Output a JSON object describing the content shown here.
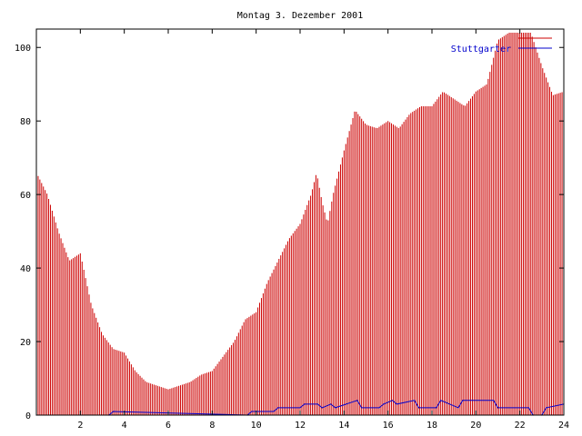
{
  "chart_data": {
    "type": "bar",
    "title": "Montag 3. Dezember 2001",
    "xlabel": "",
    "ylabel": "",
    "xlim": [
      0,
      24
    ],
    "ylim": [
      0,
      105
    ],
    "x_ticks": [
      "2",
      "4",
      "6",
      "8",
      "10",
      "12",
      "14",
      "16",
      "18",
      "20",
      "22",
      "24"
    ],
    "x_tick_values": [
      2,
      4,
      6,
      8,
      10,
      12,
      14,
      16,
      18,
      20,
      22,
      24
    ],
    "y_ticks": [
      "0",
      "20",
      "40",
      "60",
      "80",
      "100"
    ],
    "y_tick_values": [
      0,
      20,
      40,
      60,
      80,
      100
    ],
    "grid": false,
    "legend_position": "top-right",
    "series": [
      {
        "name": "",
        "style": "impulses",
        "color": "#cc0000",
        "x": [
          0,
          0.5,
          1,
          1.5,
          2,
          2.5,
          3,
          3.5,
          4,
          4.5,
          5,
          5.5,
          6,
          6.5,
          7,
          7.5,
          8,
          8.5,
          9,
          9.5,
          10,
          10.5,
          11,
          11.5,
          12,
          12.5,
          12.75,
          13,
          13.25,
          13.5,
          14,
          14.5,
          15,
          15.5,
          16,
          16.5,
          17,
          17.5,
          18,
          18.5,
          19,
          19.5,
          20,
          20.5,
          21,
          21.5,
          22,
          22.5,
          23,
          23.5,
          24
        ],
        "values": [
          66,
          60,
          50,
          42,
          44,
          30,
          22,
          18,
          17,
          12,
          9,
          8,
          7,
          8,
          9,
          11,
          12,
          16,
          20,
          26,
          28,
          36,
          42,
          48,
          52,
          60,
          66,
          58,
          52,
          60,
          72,
          83,
          79,
          78,
          80,
          78,
          82,
          84,
          84,
          88,
          86,
          84,
          88,
          90,
          102,
          104,
          104,
          104,
          95,
          87,
          88
        ]
      },
      {
        "name": "Stuttgarter",
        "style": "line",
        "color": "#0000cc",
        "x": [
          0,
          3.3,
          3.5,
          9.6,
          9.8,
          10.8,
          11,
          12,
          12.2,
          12.8,
          13,
          13.4,
          13.6,
          14.6,
          14.8,
          15.6,
          15.8,
          16.2,
          16.4,
          17.2,
          17.4,
          18.2,
          18.4,
          19.2,
          19.4,
          20.8,
          21,
          22.4,
          22.6,
          23,
          23.2,
          24
        ],
        "values": [
          0,
          0,
          1,
          0,
          1,
          1,
          2,
          2,
          3,
          3,
          2,
          3,
          2,
          4,
          2,
          2,
          3,
          4,
          3,
          4,
          2,
          2,
          4,
          2,
          4,
          4,
          2,
          2,
          0,
          0,
          2,
          3
        ]
      }
    ]
  }
}
